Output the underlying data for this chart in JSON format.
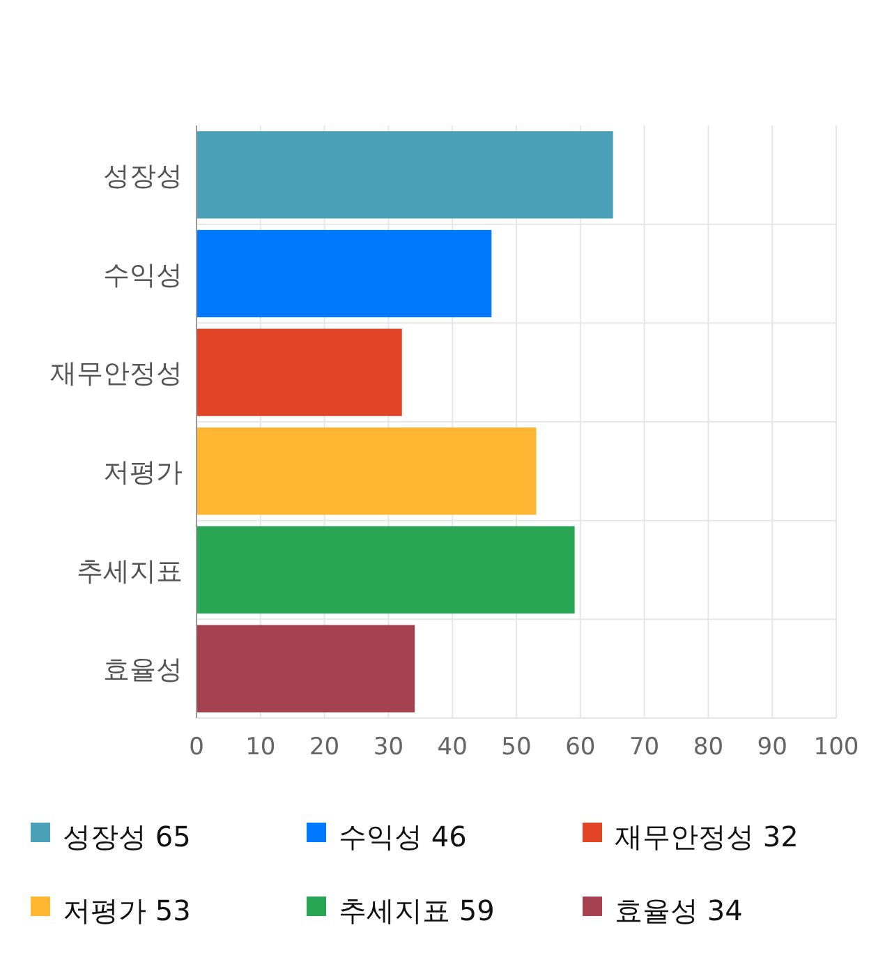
{
  "chart_data": {
    "type": "bar",
    "orientation": "horizontal",
    "categories": [
      "성장성",
      "수익성",
      "재무안정성",
      "저평가",
      "추세지표",
      "효율성"
    ],
    "series": [
      {
        "name": "성장성 65",
        "color": "#4aa0b9",
        "values": [
          65,
          null,
          null,
          null,
          null,
          null
        ]
      },
      {
        "name": "수익성 46",
        "color": "#0079ff",
        "values": [
          null,
          46,
          null,
          null,
          null,
          null
        ]
      },
      {
        "name": "재무안정성 32",
        "color": "#e24525",
        "values": [
          null,
          null,
          32,
          null,
          null,
          null
        ]
      },
      {
        "name": "저평가 53",
        "color": "#ffb733",
        "values": [
          null,
          null,
          null,
          53,
          null,
          null
        ]
      },
      {
        "name": "추세지표 59",
        "color": "#29a654",
        "values": [
          null,
          null,
          null,
          null,
          59,
          null
        ]
      },
      {
        "name": "효율성 34",
        "color": "#a6424f",
        "values": [
          null,
          null,
          null,
          null,
          null,
          34
        ]
      }
    ],
    "xlim": [
      0,
      100
    ],
    "xticks": [
      0,
      10,
      20,
      30,
      40,
      50,
      60,
      70,
      80,
      90,
      100
    ],
    "grid": true,
    "legend": "bottom"
  }
}
